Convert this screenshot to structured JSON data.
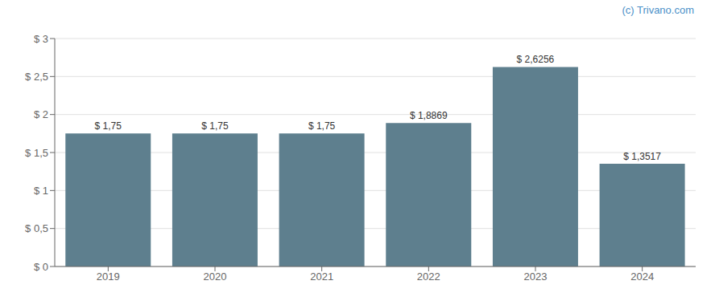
{
  "chart_data": {
    "type": "bar",
    "categories": [
      "2019",
      "2020",
      "2021",
      "2022",
      "2023",
      "2024"
    ],
    "values": [
      1.75,
      1.75,
      1.75,
      1.8869,
      2.6256,
      1.3517
    ],
    "value_labels": [
      "$ 1,75",
      "$ 1,75",
      "$ 1,75",
      "$ 1,8869",
      "$ 2,6256",
      "$ 1,3517"
    ],
    "data_labels": true,
    "color": "#5e7f8e",
    "ylim": [
      0,
      3.0
    ],
    "yticks": [
      {
        "value": 0,
        "label": "$ 0"
      },
      {
        "value": 0.5,
        "label": "$ 0,5"
      },
      {
        "value": 1.0,
        "label": "$ 1"
      },
      {
        "value": 1.5,
        "label": "$ 1,5"
      },
      {
        "value": 2.0,
        "label": "$ 2"
      },
      {
        "value": 2.5,
        "label": "$ 2,5"
      },
      {
        "value": 3.0,
        "label": "$ 3"
      }
    ],
    "grid": true,
    "annotation": {
      "text": "(c) Trivano.com",
      "color": "#4a90c8"
    }
  }
}
